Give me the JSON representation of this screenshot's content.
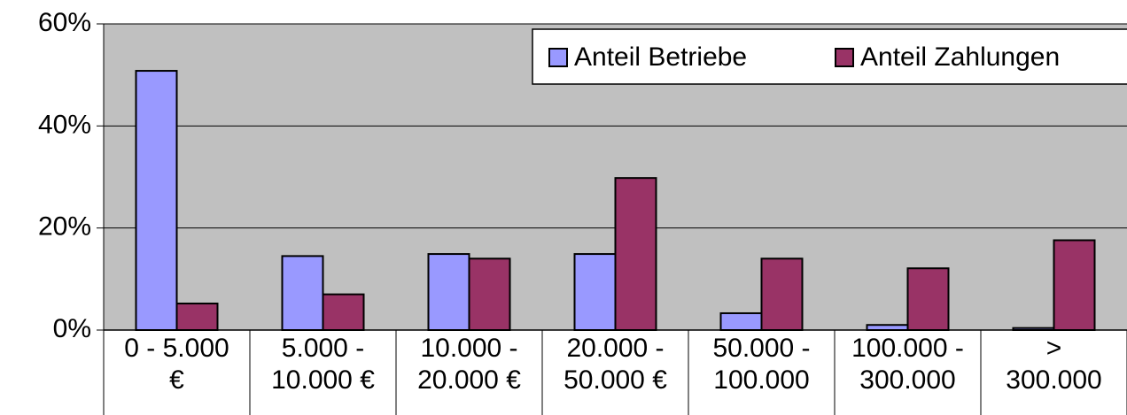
{
  "chart_data": {
    "type": "bar",
    "categories": [
      "0 - 5.000\n€",
      "5.000 -\n10.000 €",
      "10.000 -\n20.000 €",
      "20.000 -\n50.000 €",
      "50.000 -\n100.000",
      "100.000 -\n300.000",
      ">\n300.000"
    ],
    "series": [
      {
        "name": "Anteil Betriebe",
        "color": "#9999ff",
        "values": [
          50.8,
          14.5,
          14.9,
          14.9,
          3.3,
          1.0,
          0.4
        ]
      },
      {
        "name": "Anteil Zahlungen",
        "color": "#993366",
        "values": [
          5.2,
          7.0,
          14.0,
          29.8,
          14.0,
          12.1,
          17.6
        ]
      }
    ],
    "ylim": [
      0,
      60
    ],
    "yticks": [
      {
        "value": 0,
        "label": "0%"
      },
      {
        "value": 20,
        "label": "20%"
      },
      {
        "value": 40,
        "label": "40%"
      },
      {
        "value": 60,
        "label": "60%"
      }
    ],
    "grid": true,
    "legend": "top-right"
  }
}
